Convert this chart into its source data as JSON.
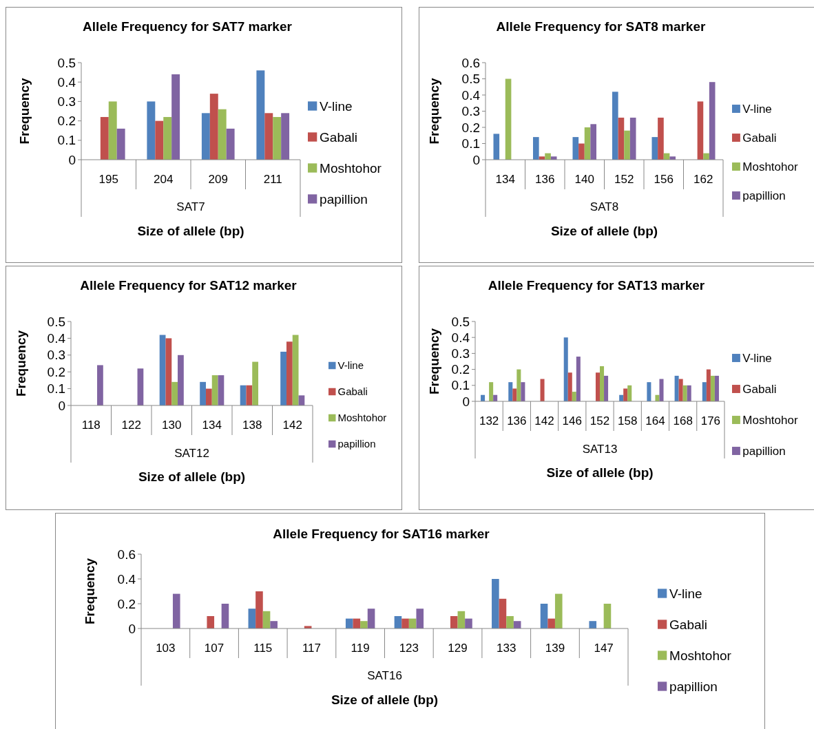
{
  "chart_data": [
    {
      "type": "bar",
      "title": "Allele Frequency for SAT7 marker",
      "xlabel": "Size of allele (bp)",
      "ylabel": "Frequency",
      "annotations": [
        "SAT7"
      ],
      "categories": [
        "195",
        "204",
        "209",
        "211"
      ],
      "ylim": [
        0,
        0.5
      ],
      "yticks": [
        0,
        0.1,
        0.2,
        0.3,
        0.4,
        0.5
      ],
      "legend": "right",
      "series": [
        {
          "name": "V-line",
          "color": "#4f81bd",
          "values": [
            0,
            0.3,
            0.24,
            0.46
          ]
        },
        {
          "name": "Gabali",
          "color": "#c0504d",
          "values": [
            0.22,
            0.2,
            0.34,
            0.24
          ]
        },
        {
          "name": "Moshtohor",
          "color": "#9bbb59",
          "values": [
            0.3,
            0.22,
            0.26,
            0.22
          ]
        },
        {
          "name": "papillion",
          "color": "#8064a2",
          "values": [
            0.16,
            0.44,
            0.16,
            0.24
          ]
        }
      ]
    },
    {
      "type": "bar",
      "title": "Allele Frequency for SAT8 marker",
      "xlabel": "Size of allele (bp)",
      "ylabel": "Frequency",
      "annotations": [
        "SAT8"
      ],
      "categories": [
        "134",
        "136",
        "140",
        "152",
        "156",
        "162"
      ],
      "ylim": [
        0,
        0.6
      ],
      "yticks": [
        0,
        0.1,
        0.2,
        0.3,
        0.4,
        0.5,
        0.6
      ],
      "legend": "right",
      "series": [
        {
          "name": "V-line",
          "color": "#4f81bd",
          "values": [
            0.16,
            0.14,
            0.14,
            0.42,
            0.14,
            0
          ]
        },
        {
          "name": "Gabali",
          "color": "#c0504d",
          "values": [
            0,
            0.02,
            0.1,
            0.26,
            0.26,
            0.36
          ]
        },
        {
          "name": "Moshtohor",
          "color": "#9bbb59",
          "values": [
            0.5,
            0.04,
            0.2,
            0.18,
            0.04,
            0.04
          ]
        },
        {
          "name": "papillion",
          "color": "#8064a2",
          "values": [
            0,
            0.02,
            0.22,
            0.26,
            0.02,
            0.48
          ]
        }
      ]
    },
    {
      "type": "bar",
      "title": "Allele Frequency for SAT12 marker",
      "xlabel": "Size of allele (bp)",
      "ylabel": "Frequency",
      "annotations": [
        "SAT12"
      ],
      "categories": [
        "118",
        "122",
        "130",
        "134",
        "138",
        "142"
      ],
      "ylim": [
        0,
        0.5
      ],
      "yticks": [
        0,
        0.1,
        0.2,
        0.3,
        0.4,
        0.5
      ],
      "legend": "right",
      "series": [
        {
          "name": "V-line",
          "color": "#4f81bd",
          "values": [
            0,
            0,
            0.42,
            0.14,
            0.12,
            0.32
          ]
        },
        {
          "name": "Gabali",
          "color": "#c0504d",
          "values": [
            0,
            0,
            0.4,
            0.1,
            0.12,
            0.38
          ]
        },
        {
          "name": "Moshtohor",
          "color": "#9bbb59",
          "values": [
            0,
            0,
            0.14,
            0.18,
            0.26,
            0.42
          ]
        },
        {
          "name": "papillion",
          "color": "#8064a2",
          "values": [
            0.24,
            0.22,
            0.3,
            0.18,
            0,
            0.06
          ]
        }
      ]
    },
    {
      "type": "bar",
      "title": "Allele Frequency for SAT13 marker",
      "xlabel": "Size of allele (bp)",
      "ylabel": "Frequency",
      "annotations": [
        "SAT13"
      ],
      "categories": [
        "132",
        "136",
        "142",
        "146",
        "152",
        "158",
        "164",
        "168",
        "176"
      ],
      "ylim": [
        0,
        0.5
      ],
      "yticks": [
        0,
        0.1,
        0.2,
        0.3,
        0.4,
        0.5
      ],
      "legend": "right",
      "series": [
        {
          "name": "V-line",
          "color": "#4f81bd",
          "values": [
            0.04,
            0.12,
            0,
            0.4,
            0,
            0.04,
            0.12,
            0.16,
            0.12
          ]
        },
        {
          "name": "Gabali",
          "color": "#c0504d",
          "values": [
            0,
            0.08,
            0.14,
            0.18,
            0.18,
            0.08,
            0,
            0.14,
            0.2
          ]
        },
        {
          "name": "Moshtohor",
          "color": "#9bbb59",
          "values": [
            0.12,
            0.2,
            0,
            0.06,
            0.22,
            0.1,
            0.04,
            0.1,
            0.16
          ]
        },
        {
          "name": "papillion",
          "color": "#8064a2",
          "values": [
            0.04,
            0.12,
            0,
            0.28,
            0.16,
            0,
            0.14,
            0.1,
            0.16
          ]
        }
      ]
    },
    {
      "type": "bar",
      "title": "Allele Frequency for SAT16 marker",
      "xlabel": "Size of allele (bp)",
      "ylabel": "Frequency",
      "annotations": [
        "SAT16"
      ],
      "categories": [
        "103",
        "107",
        "115",
        "117",
        "119",
        "123",
        "129",
        "133",
        "139",
        "147"
      ],
      "ylim": [
        0,
        0.6
      ],
      "yticks": [
        0,
        0.2,
        0.4,
        0.6
      ],
      "legend": "right",
      "series": [
        {
          "name": "V-line",
          "color": "#4f81bd",
          "values": [
            0,
            0,
            0.16,
            0,
            0.08,
            0.1,
            0,
            0.4,
            0.2,
            0.06
          ]
        },
        {
          "name": "Gabali",
          "color": "#c0504d",
          "values": [
            0,
            0.1,
            0.3,
            0.02,
            0.08,
            0.08,
            0.1,
            0.24,
            0.08,
            0
          ]
        },
        {
          "name": "Moshtohor",
          "color": "#9bbb59",
          "values": [
            0,
            0,
            0.14,
            0,
            0.06,
            0.08,
            0.14,
            0.1,
            0.28,
            0.2
          ]
        },
        {
          "name": "papillion",
          "color": "#8064a2",
          "values": [
            0.28,
            0.2,
            0.06,
            0,
            0.16,
            0.16,
            0.08,
            0.06,
            0,
            0
          ]
        }
      ]
    }
  ]
}
